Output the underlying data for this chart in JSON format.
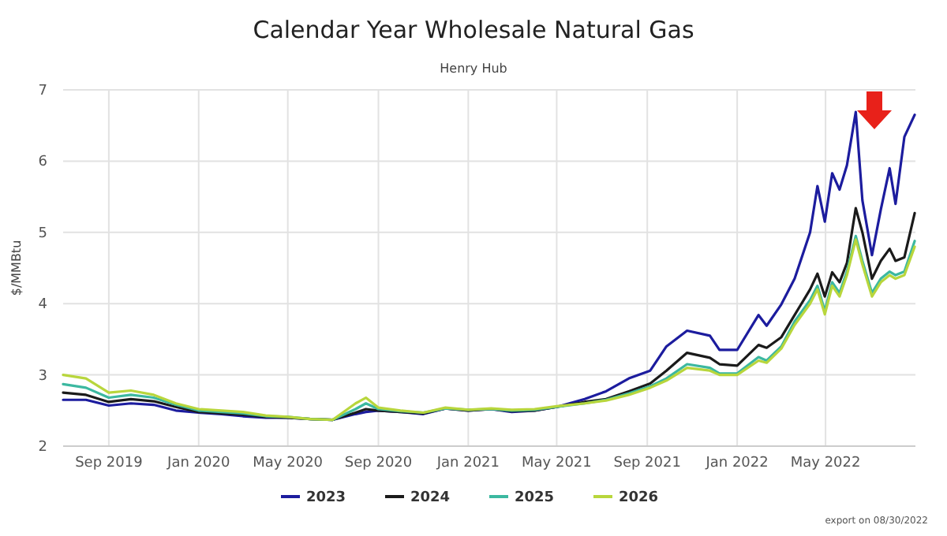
{
  "chart_data": {
    "type": "line",
    "title": "Calendar Year Wholesale Natural Gas",
    "subtitle": "Henry Hub",
    "ylabel": "$/MMBtu",
    "annotations": [
      "export on 08/30/2022"
    ],
    "x": [
      "2019-07-01",
      "2019-08-01",
      "2019-09-01",
      "2019-10-01",
      "2019-11-01",
      "2019-12-01",
      "2020-01-01",
      "2020-02-01",
      "2020-03-01",
      "2020-04-01",
      "2020-05-01",
      "2020-06-01",
      "2020-07-01",
      "2020-08-01",
      "2020-08-15",
      "2020-09-01",
      "2020-10-01",
      "2020-11-01",
      "2020-12-01",
      "2021-01-01",
      "2021-02-01",
      "2021-03-01",
      "2021-04-01",
      "2021-05-01",
      "2021-06-08",
      "2021-07-07",
      "2021-08-07",
      "2021-09-05",
      "2021-09-27",
      "2021-10-25",
      "2021-11-25",
      "2021-12-08",
      "2022-01-01",
      "2022-01-30",
      "2022-02-10",
      "2022-03-02",
      "2022-03-20",
      "2022-04-10",
      "2022-04-20",
      "2022-04-30",
      "2022-05-10",
      "2022-05-20",
      "2022-05-30",
      "2022-06-11",
      "2022-06-20",
      "2022-07-03",
      "2022-07-15",
      "2022-07-27",
      "2022-08-04",
      "2022-08-16",
      "2022-08-30"
    ],
    "series": [
      {
        "name": "2023",
        "color": "#1c1c9e",
        "values": [
          2.65,
          2.65,
          2.57,
          2.6,
          2.58,
          2.5,
          2.47,
          2.45,
          2.42,
          2.4,
          2.4,
          2.38,
          2.37,
          2.45,
          2.48,
          2.5,
          2.48,
          2.45,
          2.53,
          2.5,
          2.52,
          2.48,
          2.5,
          2.55,
          2.66,
          2.77,
          2.95,
          3.06,
          3.4,
          3.62,
          3.55,
          3.35,
          3.35,
          3.84,
          3.69,
          3.99,
          4.35,
          5.0,
          5.65,
          5.15,
          5.83,
          5.6,
          5.94,
          6.69,
          5.45,
          4.68,
          5.32,
          5.9,
          5.4,
          6.34,
          6.65
        ]
      },
      {
        "name": "2024",
        "color": "#1a1a1a",
        "values": [
          2.75,
          2.72,
          2.62,
          2.66,
          2.63,
          2.55,
          2.48,
          2.46,
          2.44,
          2.41,
          2.4,
          2.38,
          2.37,
          2.47,
          2.52,
          2.5,
          2.48,
          2.46,
          2.53,
          2.5,
          2.52,
          2.49,
          2.5,
          2.55,
          2.62,
          2.66,
          2.77,
          2.88,
          3.06,
          3.31,
          3.24,
          3.15,
          3.13,
          3.42,
          3.38,
          3.53,
          3.84,
          4.2,
          4.42,
          4.1,
          4.44,
          4.3,
          4.57,
          5.34,
          5.0,
          4.35,
          4.6,
          4.77,
          4.6,
          4.65,
          5.27
        ]
      },
      {
        "name": "2025",
        "color": "#3cb8a0",
        "values": [
          2.87,
          2.82,
          2.68,
          2.72,
          2.68,
          2.58,
          2.5,
          2.48,
          2.46,
          2.42,
          2.41,
          2.38,
          2.37,
          2.52,
          2.6,
          2.52,
          2.49,
          2.47,
          2.53,
          2.51,
          2.52,
          2.5,
          2.51,
          2.55,
          2.6,
          2.65,
          2.74,
          2.84,
          2.95,
          3.15,
          3.1,
          3.02,
          3.02,
          3.25,
          3.2,
          3.4,
          3.75,
          4.05,
          4.25,
          3.9,
          4.3,
          4.15,
          4.45,
          4.95,
          4.6,
          4.15,
          4.35,
          4.45,
          4.4,
          4.45,
          4.88
        ]
      },
      {
        "name": "2026",
        "color": "#b8d63c",
        "values": [
          3.0,
          2.95,
          2.75,
          2.78,
          2.72,
          2.6,
          2.52,
          2.5,
          2.48,
          2.43,
          2.41,
          2.38,
          2.37,
          2.6,
          2.68,
          2.54,
          2.5,
          2.47,
          2.54,
          2.51,
          2.53,
          2.51,
          2.52,
          2.56,
          2.6,
          2.64,
          2.72,
          2.82,
          2.92,
          3.1,
          3.06,
          3.0,
          3.0,
          3.2,
          3.17,
          3.37,
          3.7,
          4.0,
          4.2,
          3.85,
          4.25,
          4.1,
          4.4,
          4.9,
          4.55,
          4.1,
          4.3,
          4.4,
          4.35,
          4.4,
          4.8
        ]
      }
    ],
    "xlim": [
      "2019-07-01",
      "2022-08-31"
    ],
    "xticks": [
      {
        "value": "2019-09-01",
        "label": "Sep 2019"
      },
      {
        "value": "2020-01-01",
        "label": "Jan 2020"
      },
      {
        "value": "2020-05-01",
        "label": "May 2020"
      },
      {
        "value": "2020-09-01",
        "label": "Sep 2020"
      },
      {
        "value": "2021-01-01",
        "label": "Jan 2021"
      },
      {
        "value": "2021-05-01",
        "label": "May 2021"
      },
      {
        "value": "2021-09-01",
        "label": "Sep 2021"
      },
      {
        "value": "2022-01-01",
        "label": "Jan 2022"
      },
      {
        "value": "2022-05-01",
        "label": "May 2022"
      }
    ],
    "ylim": [
      2,
      7
    ],
    "yticks": [
      2,
      3,
      4,
      5,
      6,
      7
    ],
    "grid": true,
    "legend": "bottom",
    "marker": "none",
    "line_style": "solid"
  }
}
